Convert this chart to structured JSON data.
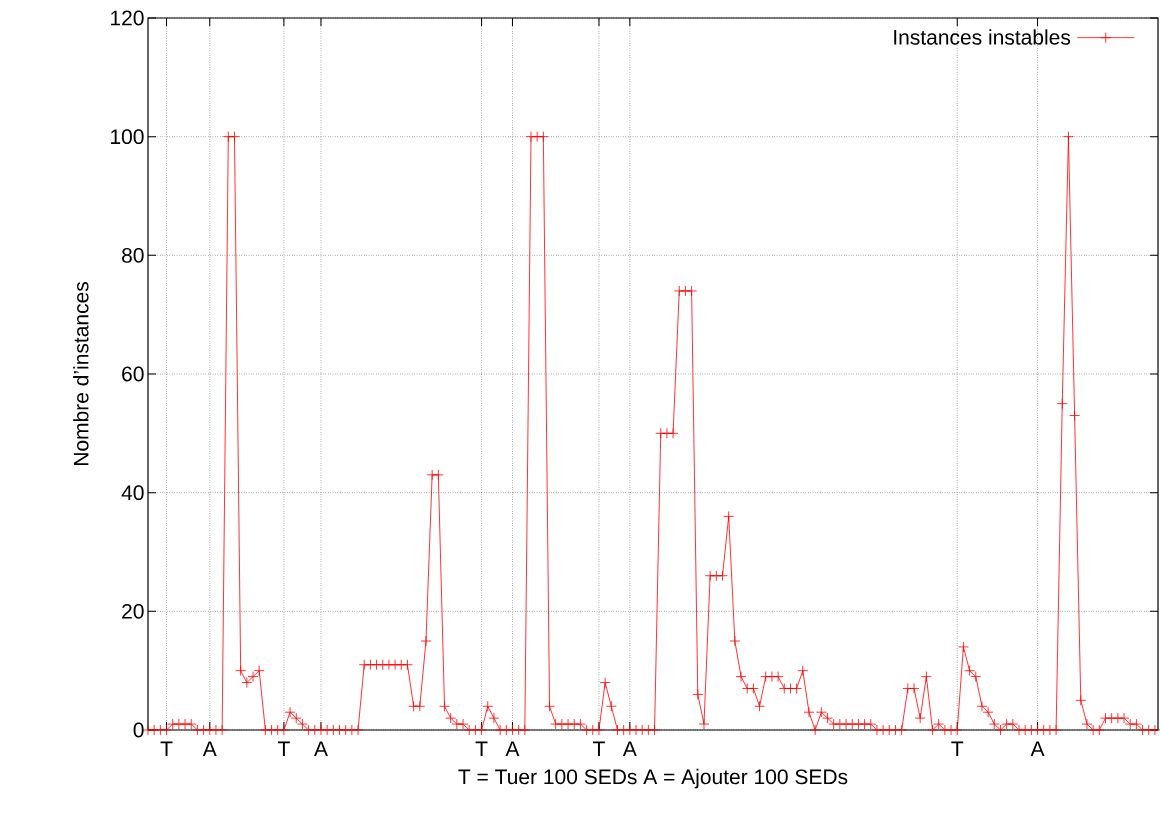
{
  "chart_data": {
    "type": "line",
    "xlabel": "T = Tuer 100 SEDs   A = Ajouter 100 SEDs",
    "ylabel": "Nombre d’instances",
    "categories": [
      null,
      null,
      null,
      "T",
      null,
      null,
      null,
      null,
      null,
      null,
      "A",
      null,
      null,
      null,
      null,
      null,
      null,
      null,
      null,
      null,
      null,
      null,
      "T",
      null,
      null,
      null,
      null,
      null,
      "A",
      null,
      null,
      null,
      null,
      null,
      null,
      null,
      null,
      null,
      null,
      null,
      null,
      null,
      null,
      null,
      null,
      null,
      null,
      null,
      null,
      null,
      null,
      null,
      null,
      null,
      "T",
      null,
      null,
      null,
      null,
      "A",
      null,
      null,
      null,
      null,
      null,
      null,
      null,
      null,
      null,
      null,
      null,
      null,
      null,
      "T",
      null,
      null,
      null,
      null,
      "A",
      null,
      null,
      null,
      null,
      null,
      null,
      null,
      null,
      null,
      null,
      null,
      null,
      null,
      null,
      null,
      null,
      null,
      null,
      null,
      null,
      null,
      null,
      null,
      null,
      null,
      null,
      null,
      null,
      null,
      null,
      null,
      null,
      null,
      null,
      null,
      null,
      null,
      null,
      null,
      null,
      null,
      null,
      null,
      null,
      null,
      null,
      null,
      null,
      null,
      null,
      null,
      null,
      "T",
      null,
      null,
      null,
      null,
      null,
      null,
      null,
      null,
      null,
      null,
      null,
      null,
      "A",
      null,
      null,
      null,
      null,
      null,
      null,
      null,
      null,
      null,
      null,
      null,
      null,
      null,
      null,
      null,
      null,
      null,
      null,
      null
    ],
    "series": [
      {
        "name": "Instances instables",
        "color": "#ff0000",
        "values": [
          0,
          0,
          0,
          0,
          1,
          1,
          1,
          1,
          0,
          0,
          0,
          0,
          0,
          100,
          100,
          10,
          8,
          9,
          10,
          0,
          0,
          0,
          0,
          3,
          2,
          1,
          0,
          0,
          0,
          0,
          0,
          0,
          0,
          0,
          0,
          11,
          11,
          11,
          11,
          11,
          11,
          11,
          11,
          4,
          4,
          15,
          43,
          43,
          4,
          2,
          1,
          1,
          0,
          0,
          0,
          4,
          2,
          0,
          0,
          0,
          0,
          0,
          100,
          100,
          100,
          4,
          1,
          1,
          1,
          1,
          1,
          0,
          0,
          0,
          8,
          4,
          0,
          0,
          0,
          0,
          0,
          0,
          0,
          50,
          50,
          50,
          74,
          74,
          74,
          6,
          1,
          26,
          26,
          26,
          36,
          15,
          9,
          7,
          7,
          4,
          9,
          9,
          9,
          7,
          7,
          7,
          10,
          3,
          0,
          3,
          2,
          1,
          1,
          1,
          1,
          1,
          1,
          1,
          0,
          0,
          0,
          0,
          0,
          7,
          7,
          2,
          9,
          0,
          1,
          0,
          0,
          0,
          14,
          10,
          9,
          4,
          3,
          1,
          0,
          1,
          1,
          0,
          0,
          0,
          0,
          0,
          0,
          0,
          55,
          100,
          53,
          5,
          1,
          0,
          0,
          2,
          2,
          2,
          2,
          1,
          1,
          0,
          0,
          0
        ]
      }
    ],
    "ylim": [
      0,
      120
    ],
    "yticks": [
      0,
      20,
      40,
      60,
      80,
      100,
      120
    ],
    "grid": true,
    "legend": "top right",
    "marker": "cross",
    "line_style": "solid"
  }
}
